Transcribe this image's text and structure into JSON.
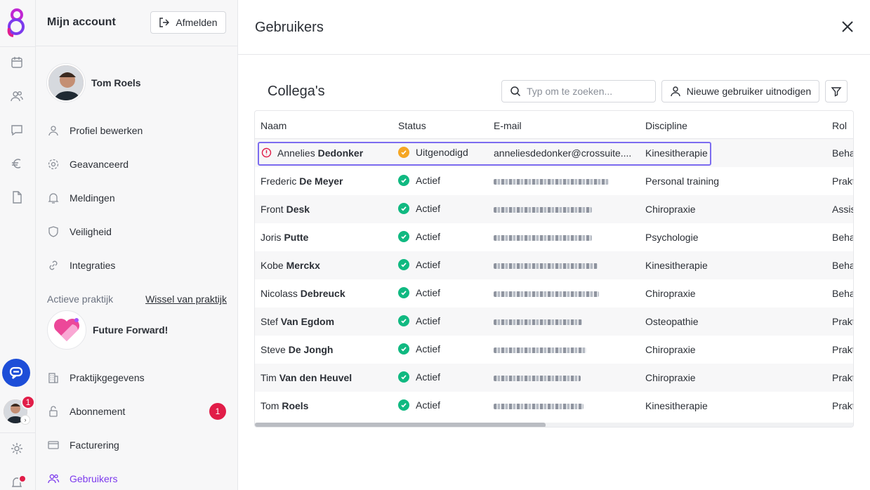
{
  "panel": {
    "title": "Mijn account",
    "logout_label": "Afmelden",
    "user_name": "Tom Roels",
    "menu": [
      {
        "label": "Profiel bewerken",
        "icon": "user-icon"
      },
      {
        "label": "Geavanceerd",
        "icon": "gear-icon"
      },
      {
        "label": "Meldingen",
        "icon": "bell-icon"
      },
      {
        "label": "Veiligheid",
        "icon": "shield-icon"
      },
      {
        "label": "Integraties",
        "icon": "link-icon"
      }
    ],
    "active_practice_label": "Actieve praktijk",
    "switch_practice_label": "Wissel van praktijk",
    "practice_name": "Future Forward!",
    "practice_menu": [
      {
        "label": "Praktijkgegevens",
        "icon": "building-icon"
      },
      {
        "label": "Abonnement",
        "icon": "lock-icon",
        "badge": "1"
      },
      {
        "label": "Facturering",
        "icon": "credit-card-icon"
      },
      {
        "label": "Gebruikers",
        "icon": "users-icon",
        "active": true
      }
    ]
  },
  "rail": {
    "avatar_badge": "1"
  },
  "main": {
    "title": "Gebruikers",
    "section_title": "Collega's",
    "search_placeholder": "Typ om te zoeken...",
    "invite_label": "Nieuwe gebruiker uitnodigen",
    "columns": [
      "Naam",
      "Status",
      "E-mail",
      "Discipline",
      "Rol"
    ],
    "rows": [
      {
        "first": "Annelies",
        "last": "Dedonker",
        "status": "Uitgenodigd",
        "email": "anneliesdedonker@crossuite....",
        "discipline": "Kinesitherapie",
        "role": "Beha"
      },
      {
        "first": "Frederic",
        "last": "De Meyer",
        "status": "Actief",
        "email": "",
        "discipline": "Personal training",
        "role": "Prakt"
      },
      {
        "first": "Front",
        "last": "Desk",
        "status": "Actief",
        "email": "",
        "discipline": "Chiropraxie",
        "role": "Assis"
      },
      {
        "first": "Joris",
        "last": "Putte",
        "status": "Actief",
        "email": "",
        "discipline": "Psychologie",
        "role": "Beha"
      },
      {
        "first": "Kobe",
        "last": "Merckx",
        "status": "Actief",
        "email": "",
        "discipline": "Kinesitherapie",
        "role": "Beha"
      },
      {
        "first": "Nicolass",
        "last": "Debreuck",
        "status": "Actief",
        "email": "",
        "discipline": "Chiropraxie",
        "role": "Beha"
      },
      {
        "first": "Stef",
        "last": "Van Egdom",
        "status": "Actief",
        "email": "",
        "discipline": "Osteopathie",
        "role": "Prakt"
      },
      {
        "first": "Steve",
        "last": "De Jongh",
        "status": "Actief",
        "email": "",
        "discipline": "Chiropraxie",
        "role": "Prakt"
      },
      {
        "first": "Tim",
        "last": "Van den Heuvel",
        "status": "Actief",
        "email": "",
        "discipline": "Chiropraxie",
        "role": "Prakt"
      },
      {
        "first": "Tom",
        "last": "Roels",
        "status": "Actief",
        "email": "",
        "discipline": "Kinesitherapie",
        "role": "Prakt"
      }
    ]
  },
  "colors": {
    "accent": "#7c3aed",
    "status_ok": "#10b981",
    "status_pending": "#f5a623",
    "badge": "#e11d48",
    "highlight": "#7c6cf0"
  }
}
